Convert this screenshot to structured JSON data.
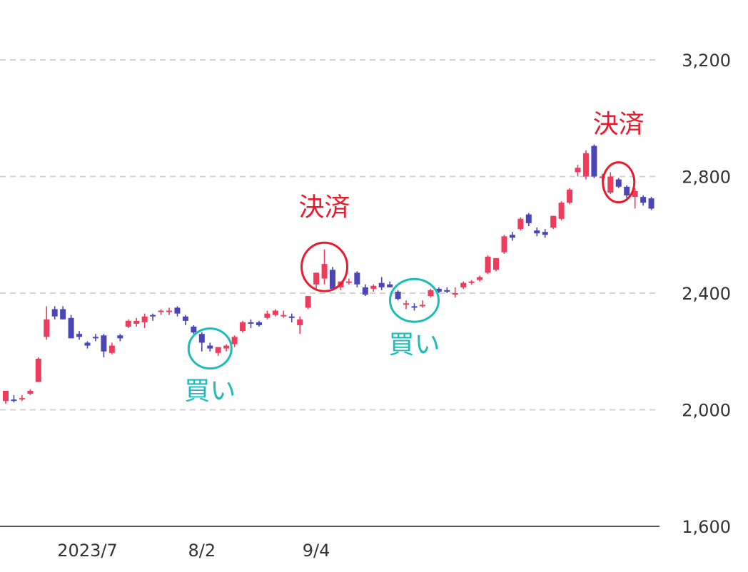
{
  "chart_data": {
    "type": "candlestick",
    "ylim": [
      1600,
      3200
    ],
    "yticks": [
      "1,600",
      "2,000",
      "2,400",
      "2,800",
      "3,200"
    ],
    "ytick_values": [
      1600,
      2000,
      2400,
      2800,
      3200
    ],
    "xticks": [
      "2023/7",
      "8/2",
      "9/4"
    ],
    "xtick_index": [
      10,
      24,
      38
    ],
    "grid": true,
    "colors": {
      "up": "#f03c5c",
      "down": "#4a46b8",
      "buy": "#1cbcb8",
      "sell": "#e81c2c",
      "grid": "#d4d4d4",
      "axis": "#555555"
    },
    "candles": [
      [
        2030,
        2065,
        2020,
        2065
      ],
      [
        2035,
        2050,
        2025,
        2030
      ],
      [
        2040,
        2050,
        2030,
        2040
      ],
      [
        2055,
        2070,
        2050,
        2065
      ],
      [
        2095,
        2180,
        2095,
        2175
      ],
      [
        2250,
        2355,
        2240,
        2310
      ],
      [
        2345,
        2355,
        2310,
        2320
      ],
      [
        2345,
        2355,
        2310,
        2310
      ],
      [
        2315,
        2325,
        2245,
        2245
      ],
      [
        2260,
        2270,
        2240,
        2250
      ],
      [
        2230,
        2235,
        2210,
        2220
      ],
      [
        2250,
        2260,
        2235,
        2245
      ],
      [
        2255,
        2260,
        2180,
        2200
      ],
      [
        2195,
        2230,
        2190,
        2220
      ],
      [
        2255,
        2260,
        2235,
        2245
      ],
      [
        2285,
        2310,
        2280,
        2305
      ],
      [
        2295,
        2315,
        2285,
        2305
      ],
      [
        2300,
        2330,
        2280,
        2320
      ],
      [
        2325,
        2330,
        2305,
        2320
      ],
      [
        2335,
        2345,
        2325,
        2340
      ],
      [
        2340,
        2350,
        2325,
        2340
      ],
      [
        2350,
        2355,
        2320,
        2330
      ],
      [
        2320,
        2325,
        2290,
        2305
      ],
      [
        2285,
        2290,
        2260,
        2265
      ],
      [
        2260,
        2265,
        2200,
        2230
      ],
      [
        2220,
        2230,
        2200,
        2210
      ],
      [
        2195,
        2215,
        2185,
        2215
      ],
      [
        2210,
        2225,
        2200,
        2220
      ],
      [
        2225,
        2255,
        2215,
        2250
      ],
      [
        2270,
        2305,
        2265,
        2300
      ],
      [
        2300,
        2310,
        2280,
        2295
      ],
      [
        2300,
        2305,
        2285,
        2290
      ],
      [
        2315,
        2340,
        2310,
        2330
      ],
      [
        2325,
        2345,
        2320,
        2340
      ],
      [
        2325,
        2340,
        2315,
        2325
      ],
      [
        2320,
        2330,
        2300,
        2315
      ],
      [
        2290,
        2320,
        2260,
        2310
      ],
      [
        2350,
        2390,
        2345,
        2390
      ],
      [
        2430,
        2470,
        2415,
        2470
      ],
      [
        2450,
        2550,
        2430,
        2500
      ],
      [
        2480,
        2490,
        2410,
        2415
      ],
      [
        2420,
        2440,
        2410,
        2440
      ],
      [
        2440,
        2450,
        2430,
        2440
      ],
      [
        2470,
        2475,
        2420,
        2430
      ],
      [
        2420,
        2430,
        2390,
        2395
      ],
      [
        2415,
        2430,
        2405,
        2425
      ],
      [
        2435,
        2455,
        2410,
        2420
      ],
      [
        2430,
        2440,
        2420,
        2420
      ],
      [
        2405,
        2410,
        2375,
        2380
      ],
      [
        2365,
        2375,
        2345,
        2365
      ],
      [
        2355,
        2365,
        2340,
        2350
      ],
      [
        2355,
        2375,
        2350,
        2360
      ],
      [
        2390,
        2415,
        2385,
        2410
      ],
      [
        2415,
        2420,
        2400,
        2405
      ],
      [
        2410,
        2420,
        2400,
        2405
      ],
      [
        2395,
        2420,
        2385,
        2400
      ],
      [
        2420,
        2440,
        2415,
        2435
      ],
      [
        2435,
        2445,
        2430,
        2440
      ],
      [
        2445,
        2460,
        2440,
        2455
      ],
      [
        2470,
        2530,
        2465,
        2525
      ],
      [
        2480,
        2520,
        2475,
        2520
      ],
      [
        2540,
        2600,
        2535,
        2595
      ],
      [
        2600,
        2610,
        2580,
        2590
      ],
      [
        2620,
        2660,
        2615,
        2655
      ],
      [
        2670,
        2675,
        2630,
        2640
      ],
      [
        2615,
        2625,
        2595,
        2605
      ],
      [
        2610,
        2620,
        2590,
        2600
      ],
      [
        2625,
        2665,
        2620,
        2665
      ],
      [
        2655,
        2715,
        2650,
        2710
      ],
      [
        2710,
        2760,
        2705,
        2755
      ],
      [
        2815,
        2840,
        2800,
        2830
      ],
      [
        2800,
        2890,
        2790,
        2880
      ],
      [
        2905,
        2910,
        2795,
        2800
      ],
      [
        2795,
        2810,
        2780,
        2800
      ],
      [
        2745,
        2815,
        2740,
        2800
      ],
      [
        2790,
        2795,
        2760,
        2765
      ],
      [
        2765,
        2770,
        2720,
        2735
      ],
      [
        2730,
        2760,
        2690,
        2750
      ],
      [
        2730,
        2735,
        2700,
        2710
      ],
      [
        2725,
        2730,
        2685,
        2690
      ]
    ],
    "annotations": [
      {
        "label": "決済",
        "type": "sell",
        "index": 39,
        "value": 2490,
        "rx": 32,
        "ry": 34,
        "label_value": 2665
      },
      {
        "label": "買い",
        "type": "buy",
        "index": 25,
        "value": 2210,
        "rx": 30,
        "ry": 28,
        "label_value": 2035
      },
      {
        "label": "買い",
        "type": "buy",
        "index": 50,
        "value": 2375,
        "rx": 34,
        "ry": 30,
        "label_value": 2195
      },
      {
        "label": "決済",
        "type": "sell",
        "index": 75,
        "value": 2780,
        "rx": 22,
        "ry": 28,
        "label_value": 2950
      }
    ]
  }
}
